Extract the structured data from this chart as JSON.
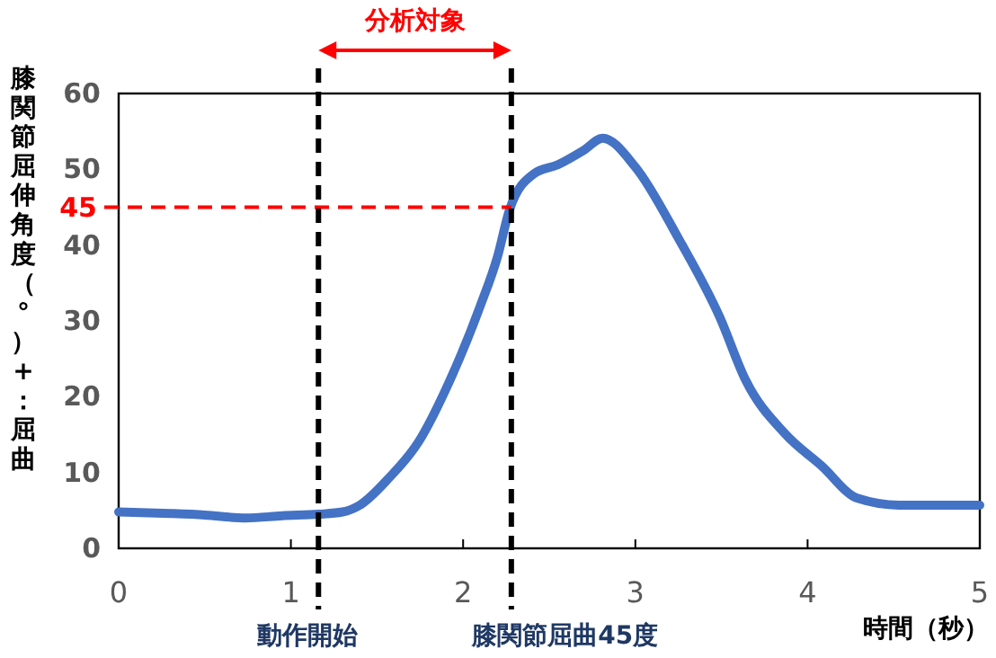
{
  "chart_data": {
    "type": "line",
    "xlabel": "時間（秒）",
    "ylabel": "膝関節屈伸角度（°）+：屈曲",
    "xlim": [
      0,
      5
    ],
    "ylim": [
      0,
      60
    ],
    "xticks": [
      0,
      1,
      2,
      3,
      4,
      5
    ],
    "yticks": [
      0,
      10,
      20,
      30,
      40,
      50,
      60
    ],
    "grid": false,
    "marker": "none",
    "line_style": "solid",
    "series": [
      {
        "color": "#4472c4",
        "x": [
          0,
          0.3,
          0.5,
          0.74,
          0.95,
          1.16,
          1.3,
          1.4,
          1.57,
          1.74,
          1.92,
          2.1,
          2.2,
          2.27,
          2.41,
          2.55,
          2.7,
          2.81,
          3.0,
          3.25,
          3.49,
          3.64,
          3.87,
          4.08,
          4.29,
          4.53,
          4.75,
          5
        ],
        "values": [
          4.8,
          4.6,
          4.4,
          4.0,
          4.3,
          4.5,
          4.8,
          5.7,
          9.3,
          14,
          22,
          32,
          38.5,
          44.7,
          49.4,
          50.6,
          52.5,
          54.1,
          50.3,
          40.9,
          30.5,
          22.2,
          15.1,
          10.9,
          6.6,
          5.7,
          5.7,
          5.7
        ]
      }
    ],
    "ref_lines": [
      {
        "axis": "y",
        "value": 45,
        "label": "45",
        "color": "#ff0000",
        "line_style": "dashed"
      },
      {
        "axis": "x",
        "value": 1.16,
        "label": "動作開始",
        "color": "#000000",
        "line_style": "dashed"
      },
      {
        "axis": "x",
        "value": 2.28,
        "label": "膝関節屈曲45度",
        "color": "#000000",
        "line_style": "dashed"
      }
    ],
    "annotations": [
      "分析対象"
    ]
  }
}
